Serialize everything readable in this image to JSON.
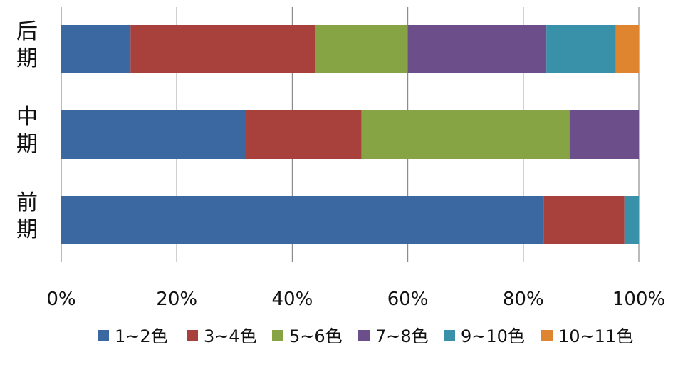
{
  "chart_data": {
    "type": "bar",
    "orientation": "horizontal",
    "stacked": "percent",
    "categories": [
      "后期",
      "中期",
      "前期"
    ],
    "series": [
      {
        "name": "1~2色",
        "color": "#3c68a2",
        "values": [
          12,
          32,
          83.5
        ]
      },
      {
        "name": "3~4色",
        "color": "#a8403b",
        "values": [
          32,
          20,
          14
        ]
      },
      {
        "name": "5~6色",
        "color": "#87a444",
        "values": [
          16,
          36,
          0
        ]
      },
      {
        "name": "7~8色",
        "color": "#6c4e8a",
        "values": [
          24,
          12,
          0
        ]
      },
      {
        "name": "9~10色",
        "color": "#3891a8",
        "values": [
          12,
          0,
          2.5
        ]
      },
      {
        "name": "10~11色",
        "color": "#e0852f",
        "values": [
          4,
          0,
          0
        ]
      }
    ],
    "x_ticks": [
      "0%",
      "20%",
      "40%",
      "60%",
      "80%",
      "100%"
    ],
    "xlim": [
      0,
      100
    ],
    "grid": "vertical",
    "legend": "bottom"
  }
}
